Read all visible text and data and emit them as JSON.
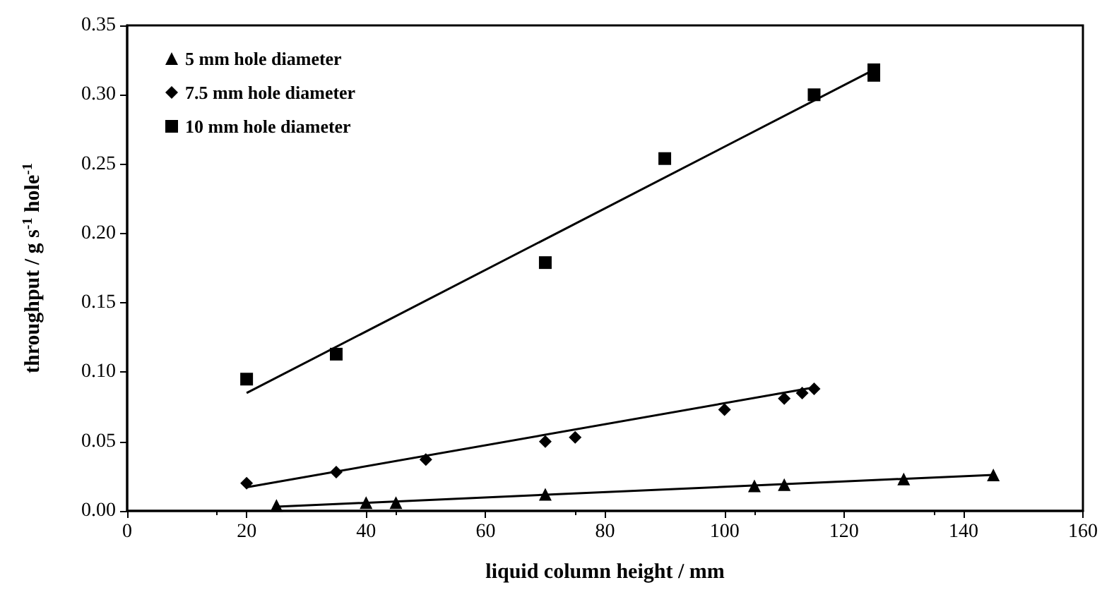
{
  "chart_data": {
    "type": "scatter",
    "xlabel": "liquid column height / mm",
    "ylabel": "throughput / g s$^{-1}$ hole$^{-1}$",
    "xlim": [
      0,
      160
    ],
    "xticks": [
      0,
      20,
      40,
      60,
      80,
      100,
      120,
      140,
      160
    ],
    "ylim": [
      0,
      0.35
    ],
    "yticks": [
      {
        "value": 0,
        "label": "0.00"
      },
      0.05,
      {
        "value": 0.1,
        "label": "0.10"
      },
      0.15,
      {
        "value": 0.2,
        "label": "0.20"
      },
      0.25,
      {
        "value": 0.3,
        "label": "0.30"
      },
      0.35
    ],
    "grid": false,
    "legend": "top left",
    "series": [
      {
        "name": "5 mm hole diameter",
        "color": "#000000",
        "marker": "triangle",
        "x": [
          25,
          40,
          45,
          70,
          105,
          110,
          130,
          145
        ],
        "values": [
          0.004,
          0.006,
          0.006,
          0.012,
          0.018,
          0.019,
          0.023,
          0.026
        ]
      },
      {
        "name": "7.5 mm hole diameter",
        "color": "#000000",
        "marker": "diamond",
        "x": [
          20,
          35,
          50,
          70,
          75,
          100,
          110,
          113,
          115
        ],
        "values": [
          0.02,
          0.028,
          0.037,
          0.05,
          0.053,
          0.073,
          0.081,
          0.085,
          0.088
        ]
      },
      {
        "name": "10 mm hole diameter",
        "color": "#000000",
        "marker": "square",
        "x": [
          20,
          35,
          70,
          90,
          115,
          125,
          125
        ],
        "values": [
          0.095,
          0.113,
          0.179,
          0.254,
          0.3,
          0.318,
          0.314
        ]
      },
      {
        "type": "line",
        "color": "#000000",
        "marker": "none",
        "x": [
          25,
          145
        ],
        "values": [
          0.003,
          0.026
        ]
      },
      {
        "type": "line",
        "color": "#000000",
        "marker": "none",
        "x": [
          20,
          115
        ],
        "values": [
          0.017,
          0.089
        ]
      },
      {
        "type": "line",
        "color": "#000000",
        "marker": "none",
        "x": [
          20,
          125
        ],
        "values": [
          0.085,
          0.318
        ]
      }
    ]
  }
}
